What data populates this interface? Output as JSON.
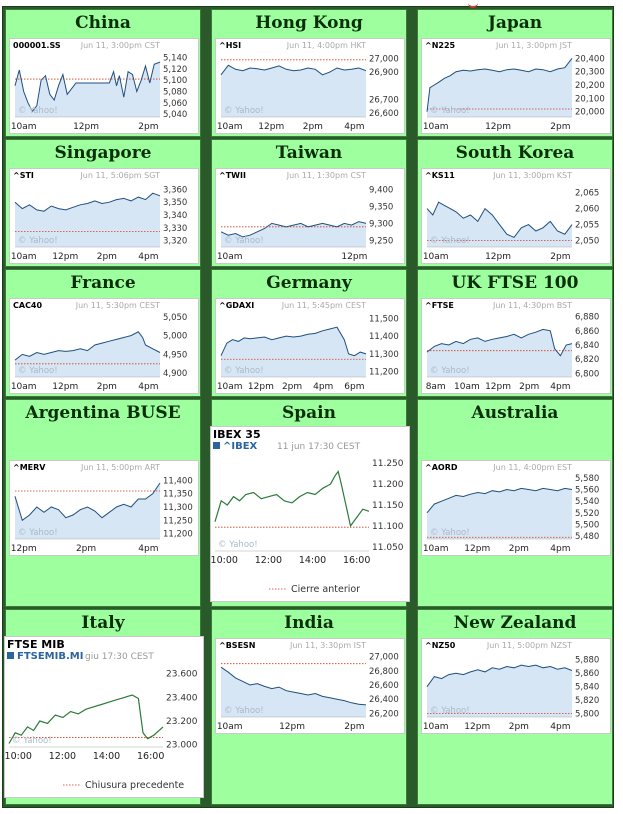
{
  "chart_data": [
    {
      "id": "china",
      "region": "China",
      "type": "area",
      "symbol": "000001.SS",
      "timestamp": "Jun 11, 3:00pm CST",
      "watermark": "© Yahoo!",
      "yticks": [
        "5,140",
        "5,120",
        "5,100",
        "5,080",
        "5,060",
        "5,040"
      ],
      "ylim": [
        5035,
        5148
      ],
      "prev_close": 5102,
      "xticks": [
        "10am",
        "12pm",
        "2pm"
      ],
      "x": [
        0,
        0.03,
        0.06,
        0.09,
        0.12,
        0.15,
        0.18,
        0.21,
        0.24,
        0.27,
        0.3,
        0.33,
        0.36,
        0.39,
        0.42,
        0.45,
        0.5,
        0.55,
        0.6,
        0.65,
        0.68,
        0.7,
        0.72,
        0.75,
        0.78,
        0.81,
        0.84,
        0.87,
        0.9,
        0.93,
        0.96,
        1.0
      ],
      "y": [
        5090,
        5118,
        5080,
        5060,
        5045,
        5055,
        5100,
        5108,
        5075,
        5065,
        5090,
        5110,
        5075,
        5085,
        5095,
        5095,
        5095,
        5095,
        5095,
        5095,
        5115,
        5090,
        5108,
        5070,
        5115,
        5110,
        5080,
        5100,
        5125,
        5095,
        5128,
        5132
      ]
    },
    {
      "id": "hk",
      "region": "Hong Kong",
      "type": "area",
      "symbol": "^HSI",
      "timestamp": "Jun 11, 4:00pm HKT",
      "watermark": "© Yahoo!",
      "yticks": [
        "27,000",
        "26,900",
        "26,700",
        "26,600"
      ],
      "ylim": [
        26570,
        27040
      ],
      "prev_close": 26990,
      "xticks": [
        "10am",
        "12pm",
        "2pm",
        "4pm"
      ],
      "x": [
        0,
        0.05,
        0.1,
        0.15,
        0.2,
        0.25,
        0.3,
        0.35,
        0.4,
        0.45,
        0.5,
        0.55,
        0.6,
        0.65,
        0.7,
        0.75,
        0.8,
        0.85,
        0.9,
        0.95,
        1.0
      ],
      "y": [
        26880,
        26950,
        26920,
        26910,
        26930,
        26925,
        26915,
        26930,
        26945,
        26920,
        26910,
        26915,
        26930,
        26920,
        26880,
        26900,
        26930,
        26915,
        26920,
        26930,
        26910
      ]
    },
    {
      "id": "japan",
      "region": "Japan",
      "type": "area",
      "symbol": "^N225",
      "timestamp": "Jun 11, 3:00pm JST",
      "watermark": "© Yahoo!",
      "yticks": [
        "20,400",
        "20,300",
        "20,200",
        "20,100",
        "20,000"
      ],
      "ylim": [
        19960,
        20440
      ],
      "prev_close": 20020,
      "xticks": [
        "10am",
        "12pm",
        "2pm"
      ],
      "x": [
        0,
        0.02,
        0.05,
        0.08,
        0.12,
        0.16,
        0.2,
        0.25,
        0.3,
        0.35,
        0.4,
        0.45,
        0.5,
        0.55,
        0.6,
        0.65,
        0.7,
        0.75,
        0.8,
        0.85,
        0.9,
        0.95,
        1.0
      ],
      "y": [
        20000,
        20180,
        20200,
        20220,
        20250,
        20270,
        20300,
        20310,
        20305,
        20315,
        20320,
        20310,
        20300,
        20315,
        20320,
        20310,
        20300,
        20320,
        20315,
        20300,
        20320,
        20330,
        20400
      ]
    },
    {
      "id": "singapore",
      "region": "Singapore",
      "type": "area",
      "symbol": "^STI",
      "timestamp": "Jun 11, 5:06pm SGT",
      "watermark": "© Yahoo!",
      "yticks": [
        "3,360",
        "3,350",
        "3,340",
        "3,330",
        "3,320"
      ],
      "ylim": [
        3315,
        3365
      ],
      "prev_close": 3327,
      "xticks": [
        "10am",
        "12pm",
        "2pm",
        "4pm"
      ],
      "x": [
        0,
        0.05,
        0.1,
        0.15,
        0.2,
        0.25,
        0.3,
        0.35,
        0.4,
        0.45,
        0.5,
        0.55,
        0.6,
        0.65,
        0.7,
        0.75,
        0.8,
        0.85,
        0.9,
        0.95,
        1.0
      ],
      "y": [
        3350,
        3345,
        3348,
        3344,
        3343,
        3347,
        3345,
        3344,
        3346,
        3348,
        3349,
        3351,
        3349,
        3350,
        3352,
        3353,
        3351,
        3354,
        3352,
        3357,
        3355
      ]
    },
    {
      "id": "taiwan",
      "region": "Taiwan",
      "type": "area",
      "symbol": "^TWII",
      "timestamp": "Jun 11, 1:30pm CST",
      "watermark": "© Yahoo!",
      "yticks": [
        "9,400",
        "9,350",
        "9,300",
        "9,250"
      ],
      "ylim": [
        9230,
        9420
      ],
      "prev_close": 9290,
      "xticks": [
        "10am",
        "12pm"
      ],
      "x": [
        0,
        0.05,
        0.1,
        0.15,
        0.2,
        0.25,
        0.3,
        0.35,
        0.4,
        0.45,
        0.5,
        0.55,
        0.6,
        0.65,
        0.7,
        0.75,
        0.8,
        0.85,
        0.9,
        0.95,
        1.0
      ],
      "y": [
        9275,
        9265,
        9270,
        9260,
        9265,
        9275,
        9285,
        9300,
        9295,
        9290,
        9295,
        9300,
        9290,
        9295,
        9300,
        9295,
        9290,
        9300,
        9295,
        9305,
        9300
      ]
    },
    {
      "id": "korea",
      "region": "South Korea",
      "type": "area",
      "symbol": "^KS11",
      "timestamp": "Jun 11, 3:00pm KST",
      "watermark": "© Yahoo!",
      "yticks": [
        "2,065",
        "2,060",
        "2,055",
        "2,050"
      ],
      "ylim": [
        2048,
        2068
      ],
      "prev_close": 2050,
      "xticks": [
        "10am",
        "12pm",
        "2pm"
      ],
      "x": [
        0,
        0.04,
        0.08,
        0.12,
        0.16,
        0.2,
        0.25,
        0.3,
        0.35,
        0.4,
        0.45,
        0.5,
        0.55,
        0.6,
        0.65,
        0.7,
        0.75,
        0.8,
        0.85,
        0.9,
        0.95,
        1.0
      ],
      "y": [
        2060,
        2058,
        2062,
        2061,
        2060,
        2059,
        2057,
        2058,
        2056,
        2060,
        2058,
        2055,
        2052,
        2051,
        2054,
        2055,
        2053,
        2054,
        2056,
        2053,
        2052,
        2055
      ]
    },
    {
      "id": "france",
      "region": "France",
      "type": "area",
      "symbol": "CAC40",
      "timestamp": "Jun 11, 5:30pm CEST",
      "watermark": "© Yahoo!",
      "yticks": [
        "5,050",
        "5,000",
        "4,950",
        "4,900"
      ],
      "ylim": [
        4890,
        5060
      ],
      "prev_close": 4925,
      "xticks": [
        "10am",
        "12pm",
        "2pm",
        "4pm"
      ],
      "x": [
        0,
        0.05,
        0.1,
        0.15,
        0.2,
        0.25,
        0.3,
        0.35,
        0.4,
        0.45,
        0.5,
        0.55,
        0.6,
        0.65,
        0.7,
        0.75,
        0.8,
        0.85,
        0.88,
        0.9,
        0.95,
        1.0
      ],
      "y": [
        4935,
        4950,
        4945,
        4955,
        4950,
        4955,
        4960,
        4958,
        4960,
        4965,
        4960,
        4975,
        4980,
        4985,
        4990,
        4995,
        5000,
        5010,
        4995,
        4975,
        4965,
        4955
      ]
    },
    {
      "id": "germany",
      "region": "Germany",
      "type": "area",
      "symbol": "^GDAXI",
      "timestamp": "Jun 11, 5:45pm CEST",
      "watermark": "© Yahoo!",
      "yticks": [
        "11,500",
        "11,400",
        "11,300",
        "11,200"
      ],
      "ylim": [
        11170,
        11530
      ],
      "prev_close": 11270,
      "xticks": [
        "10am",
        "12pm",
        "2pm",
        "4pm",
        "6pm"
      ],
      "x": [
        0,
        0.04,
        0.08,
        0.12,
        0.16,
        0.2,
        0.25,
        0.3,
        0.35,
        0.4,
        0.45,
        0.5,
        0.55,
        0.6,
        0.65,
        0.7,
        0.75,
        0.8,
        0.85,
        0.88,
        0.92,
        0.96,
        1.0
      ],
      "y": [
        11290,
        11360,
        11380,
        11370,
        11390,
        11385,
        11390,
        11395,
        11380,
        11390,
        11400,
        11395,
        11400,
        11410,
        11415,
        11430,
        11440,
        11450,
        11380,
        11300,
        11290,
        11310,
        11300
      ]
    },
    {
      "id": "uk",
      "region": "UK FTSE 100",
      "type": "area",
      "symbol": "^FTSE",
      "timestamp": "Jun 11, 4:30pm BST",
      "watermark": "© Yahoo!",
      "yticks": [
        "6,880",
        "6,860",
        "6,840",
        "6,820",
        "6,800"
      ],
      "ylim": [
        6795,
        6885
      ],
      "prev_close": 6832,
      "xticks": [
        "8am",
        "10am",
        "12pm",
        "2pm",
        "4pm"
      ],
      "x": [
        0,
        0.05,
        0.1,
        0.15,
        0.2,
        0.25,
        0.3,
        0.35,
        0.4,
        0.45,
        0.5,
        0.55,
        0.6,
        0.65,
        0.7,
        0.75,
        0.8,
        0.85,
        0.88,
        0.92,
        0.96,
        1.0
      ],
      "y": [
        6830,
        6838,
        6842,
        6840,
        6845,
        6842,
        6848,
        6850,
        6845,
        6848,
        6850,
        6852,
        6855,
        6850,
        6855,
        6858,
        6862,
        6860,
        6835,
        6825,
        6840,
        6842
      ]
    },
    {
      "id": "argentina",
      "region": "Argentina BUSE",
      "type": "area",
      "symbol": "^MERV",
      "timestamp": "Jun 11, 5:00pm ART",
      "watermark": "© Yahoo!",
      "yticks": [
        "11,400",
        "11,350",
        "11,300",
        "11,250",
        "11,200"
      ],
      "ylim": [
        11180,
        11420
      ],
      "prev_close": 11360,
      "xticks": [
        "12pm",
        "2pm",
        "4pm"
      ],
      "x": [
        0,
        0.05,
        0.1,
        0.15,
        0.2,
        0.25,
        0.3,
        0.35,
        0.4,
        0.45,
        0.5,
        0.55,
        0.6,
        0.65,
        0.7,
        0.75,
        0.8,
        0.85,
        0.9,
        0.95,
        1.0
      ],
      "y": [
        11340,
        11250,
        11270,
        11300,
        11280,
        11300,
        11290,
        11260,
        11270,
        11290,
        11300,
        11285,
        11260,
        11280,
        11300,
        11310,
        11300,
        11330,
        11330,
        11350,
        11390
      ]
    },
    {
      "id": "spain",
      "region": "Spain",
      "type": "line",
      "title": "IBEX 35",
      "series_name": "^IBEX",
      "timestamp": "11 jun 17:30 CEST",
      "watermark": "© Yahoo!",
      "legend": "Cierre anterior",
      "yticks": [
        "11.250",
        "11.200",
        "11.150",
        "11.100",
        "11.050"
      ],
      "ylim": [
        11040,
        11260
      ],
      "prev_close": 11097,
      "xticks": [
        "10:00",
        "12:00",
        "14:00",
        "16:00"
      ],
      "x": [
        0,
        0.04,
        0.08,
        0.12,
        0.16,
        0.2,
        0.25,
        0.3,
        0.35,
        0.4,
        0.45,
        0.5,
        0.55,
        0.6,
        0.65,
        0.7,
        0.75,
        0.78,
        0.8,
        0.82,
        0.85,
        0.88,
        0.92,
        0.96,
        1.0
      ],
      "y": [
        11110,
        11160,
        11150,
        11170,
        11160,
        11175,
        11180,
        11165,
        11170,
        11175,
        11160,
        11155,
        11170,
        11180,
        11175,
        11190,
        11200,
        11220,
        11230,
        11200,
        11150,
        11100,
        11120,
        11140,
        11135
      ]
    },
    {
      "id": "australia",
      "region": "Australia",
      "type": "area",
      "symbol": "^AORD",
      "timestamp": "Jun 11, 4:00pm EST",
      "watermark": "© Yahoo!",
      "yticks": [
        "5,580",
        "5,560",
        "5,540",
        "5,520",
        "5,500",
        "5,480"
      ],
      "ylim": [
        5475,
        5585
      ],
      "prev_close": 5478,
      "xticks": [
        "10am",
        "12pm",
        "2pm",
        "4pm"
      ],
      "x": [
        0,
        0.05,
        0.1,
        0.15,
        0.2,
        0.25,
        0.3,
        0.35,
        0.4,
        0.45,
        0.5,
        0.55,
        0.6,
        0.65,
        0.7,
        0.75,
        0.8,
        0.85,
        0.9,
        0.95,
        1.0
      ],
      "y": [
        5520,
        5535,
        5540,
        5545,
        5550,
        5548,
        5552,
        5555,
        5553,
        5558,
        5556,
        5560,
        5558,
        5562,
        5560,
        5558,
        5562,
        5560,
        5558,
        5562,
        5560
      ]
    },
    {
      "id": "italy",
      "region": "Italy",
      "type": "line",
      "title": "FTSE MIB",
      "series_name": "FTSEMIB.MI",
      "timestamp": "giu 17:30 CEST",
      "watermark": "© Yahoo!",
      "legend": "Chiusura precedente",
      "yticks": [
        "23.600",
        "23.400",
        "23.200",
        "23.000"
      ],
      "ylim": [
        22980,
        23640
      ],
      "prev_close": 23060,
      "xticks": [
        "10:00",
        "12:00",
        "14:00",
        "16:00"
      ],
      "x": [
        0,
        0.04,
        0.08,
        0.12,
        0.16,
        0.2,
        0.25,
        0.3,
        0.35,
        0.4,
        0.45,
        0.5,
        0.55,
        0.6,
        0.65,
        0.7,
        0.75,
        0.8,
        0.84,
        0.87,
        0.9,
        0.94,
        1.0
      ],
      "y": [
        23010,
        23100,
        23080,
        23150,
        23120,
        23200,
        23180,
        23250,
        23230,
        23280,
        23260,
        23300,
        23320,
        23340,
        23360,
        23380,
        23400,
        23420,
        23390,
        23100,
        23050,
        23080,
        23150
      ]
    },
    {
      "id": "india",
      "region": "India",
      "type": "area",
      "symbol": "^BSESN",
      "timestamp": "Jun 11, 3:30pm IST",
      "watermark": "© Yahoo!",
      "yticks": [
        "27,000",
        "26,800",
        "26,600",
        "26,400",
        "26,200"
      ],
      "ylim": [
        26150,
        27050
      ],
      "prev_close": 26900,
      "xticks": [
        "10am",
        "12pm",
        "2pm"
      ],
      "x": [
        0,
        0.05,
        0.1,
        0.15,
        0.2,
        0.25,
        0.3,
        0.35,
        0.4,
        0.45,
        0.5,
        0.55,
        0.6,
        0.65,
        0.7,
        0.75,
        0.8,
        0.85,
        0.9,
        0.95,
        1.0
      ],
      "y": [
        26850,
        26780,
        26700,
        26650,
        26600,
        26620,
        26580,
        26550,
        26570,
        26520,
        26500,
        26480,
        26460,
        26480,
        26440,
        26420,
        26400,
        26380,
        26350,
        26330,
        26320
      ]
    },
    {
      "id": "nz",
      "region": "New Zealand",
      "type": "area",
      "symbol": "^NZ50",
      "timestamp": "Jun 11, 5:00pm NZST",
      "watermark": "© Yahoo!",
      "yticks": [
        "5,880",
        "5,860",
        "5,840",
        "5,820",
        "5,800"
      ],
      "ylim": [
        5795,
        5890
      ],
      "prev_close": 5800,
      "xticks": [
        "10am",
        "12pm",
        "2pm",
        "4pm"
      ],
      "x": [
        0,
        0.05,
        0.1,
        0.15,
        0.2,
        0.25,
        0.3,
        0.35,
        0.4,
        0.45,
        0.5,
        0.55,
        0.6,
        0.65,
        0.7,
        0.75,
        0.8,
        0.85,
        0.9,
        0.95,
        1.0
      ],
      "y": [
        5840,
        5855,
        5852,
        5858,
        5860,
        5858,
        5862,
        5865,
        5862,
        5868,
        5866,
        5870,
        5868,
        5872,
        5870,
        5872,
        5868,
        5870,
        5866,
        5868,
        5864
      ]
    }
  ]
}
